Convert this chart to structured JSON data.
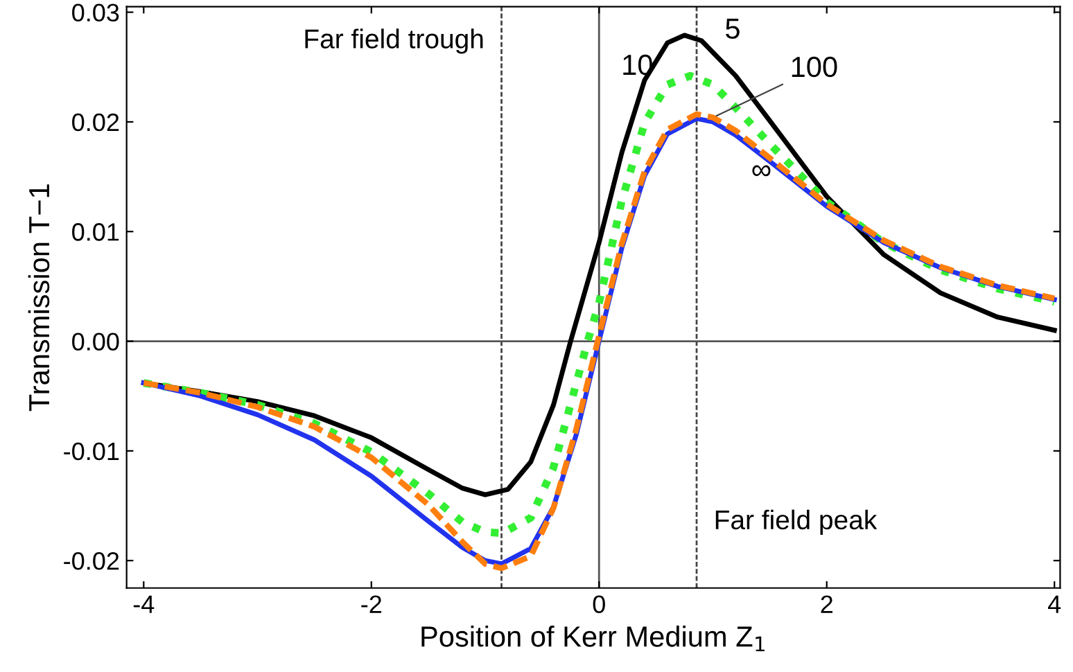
{
  "chart_data": {
    "type": "line",
    "xlabel": "Position of Kerr Medium Z$_{1}$",
    "ylabel": "Transmission T−1",
    "xlim": [
      -4.15,
      4.05
    ],
    "ylim": [
      -0.0225,
      0.0305
    ],
    "xticks": [
      -4,
      -2,
      0,
      2,
      4
    ],
    "yticks": [
      {
        "value": -0.02,
        "label": "-0.02"
      },
      {
        "value": -0.01,
        "label": "-0.01"
      },
      {
        "value": 0,
        "label": "0.00"
      },
      {
        "value": 0.01,
        "label": "0.01"
      },
      {
        "value": 0.02,
        "label": "0.02"
      },
      {
        "value": 0.03,
        "label": "0.03"
      }
    ],
    "grid": false,
    "series": [
      {
        "color": "#000000",
        "line_style": "solid",
        "x": [
          -4,
          -3.5,
          -3,
          -2.5,
          -2,
          -1.5,
          -1.2,
          -1,
          -0.8,
          -0.6,
          -0.4,
          -0.25,
          0,
          0.2,
          0.4,
          0.6,
          0.75,
          0.9,
          1.2,
          1.5,
          2,
          2.5,
          3,
          3.5,
          4
        ],
        "values": [
          -0.0038,
          -0.0046,
          -0.0055,
          -0.0068,
          -0.0088,
          -0.0117,
          -0.0134,
          -0.014,
          -0.0135,
          -0.011,
          -0.0058,
          0,
          0.009,
          0.0172,
          0.0238,
          0.0272,
          0.0279,
          0.0274,
          0.0242,
          0.0201,
          0.0132,
          0.0079,
          0.0044,
          0.0022,
          0.001
        ]
      },
      {
        "color": "#33ee33",
        "line_style": "dotted",
        "x": [
          -4,
          -3.5,
          -3,
          -2.5,
          -2,
          -1.5,
          -1.2,
          -1,
          -0.85,
          -0.6,
          -0.4,
          -0.1,
          0,
          0.2,
          0.4,
          0.6,
          0.8,
          1,
          1.2,
          1.5,
          2,
          2.5,
          3,
          3.5,
          4
        ],
        "values": [
          -0.0038,
          -0.0047,
          -0.0058,
          -0.0075,
          -0.0101,
          -0.0139,
          -0.0165,
          -0.0174,
          -0.0175,
          -0.0161,
          -0.0115,
          0,
          0.0035,
          0.0128,
          0.0199,
          0.0234,
          0.0242,
          0.0234,
          0.0213,
          0.018,
          0.0127,
          0.009,
          0.0065,
          0.0048,
          0.0036
        ]
      },
      {
        "color": "#2233ee",
        "line_style": "solid",
        "x": [
          -4,
          -3.5,
          -3,
          -2.5,
          -2,
          -1.5,
          -1.2,
          -1,
          -0.857,
          -0.6,
          -0.4,
          -0.2,
          0,
          0.2,
          0.4,
          0.6,
          0.857,
          1,
          1.2,
          1.5,
          2,
          2.5,
          3,
          3.5,
          4
        ],
        "values": [
          -0.0038,
          -0.005,
          -0.0067,
          -0.009,
          -0.0123,
          -0.0164,
          -0.0188,
          -0.02,
          -0.0203,
          -0.0189,
          -0.0151,
          -0.0085,
          0,
          0.0085,
          0.0151,
          0.0189,
          0.0203,
          0.02,
          0.0188,
          0.0164,
          0.0123,
          0.009,
          0.0067,
          0.005,
          0.0038
        ]
      },
      {
        "color": "#ff7f0e",
        "line_style": "dashed",
        "x": [
          -4,
          -3.5,
          -3,
          -2.5,
          -2,
          -1.5,
          -1.2,
          -1,
          -0.857,
          -0.6,
          -0.4,
          -0.2,
          0,
          0.2,
          0.4,
          0.6,
          0.857,
          1,
          1.2,
          1.5,
          2,
          2.5,
          3,
          3.5,
          4
        ],
        "values": [
          -0.0038,
          -0.0047,
          -0.006,
          -0.0078,
          -0.0106,
          -0.0149,
          -0.0183,
          -0.0203,
          -0.0207,
          -0.0196,
          -0.0152,
          -0.008,
          0.0005,
          0.0089,
          0.0155,
          0.0193,
          0.0207,
          0.0204,
          0.0192,
          0.0167,
          0.0125,
          0.0092,
          0.0068,
          0.0051,
          0.0039
        ]
      }
    ],
    "annotations": [
      {
        "text": "5",
        "x": 0.9,
        "y": 0.0274
      },
      {
        "text": "10",
        "x": 0.6,
        "y": 0.0234
      },
      {
        "text": "100",
        "x": 1.0,
        "y": 0.0204
      },
      {
        "text": "∞",
        "x": 1.2,
        "y": 0.0188
      }
    ],
    "ref_lines": [
      {
        "axis": "x",
        "value": -0.857,
        "label": "Far field trough",
        "color": "#444444",
        "line_style": "dashed"
      },
      {
        "axis": "x",
        "value": 0.857,
        "label": "Far field peak",
        "color": "#444444",
        "line_style": "dashed"
      },
      {
        "axis": "x",
        "value": 0,
        "color": "#555555",
        "line_style": "solid"
      },
      {
        "axis": "y",
        "value": 0,
        "color": "#555555",
        "line_style": "solid"
      }
    ]
  }
}
